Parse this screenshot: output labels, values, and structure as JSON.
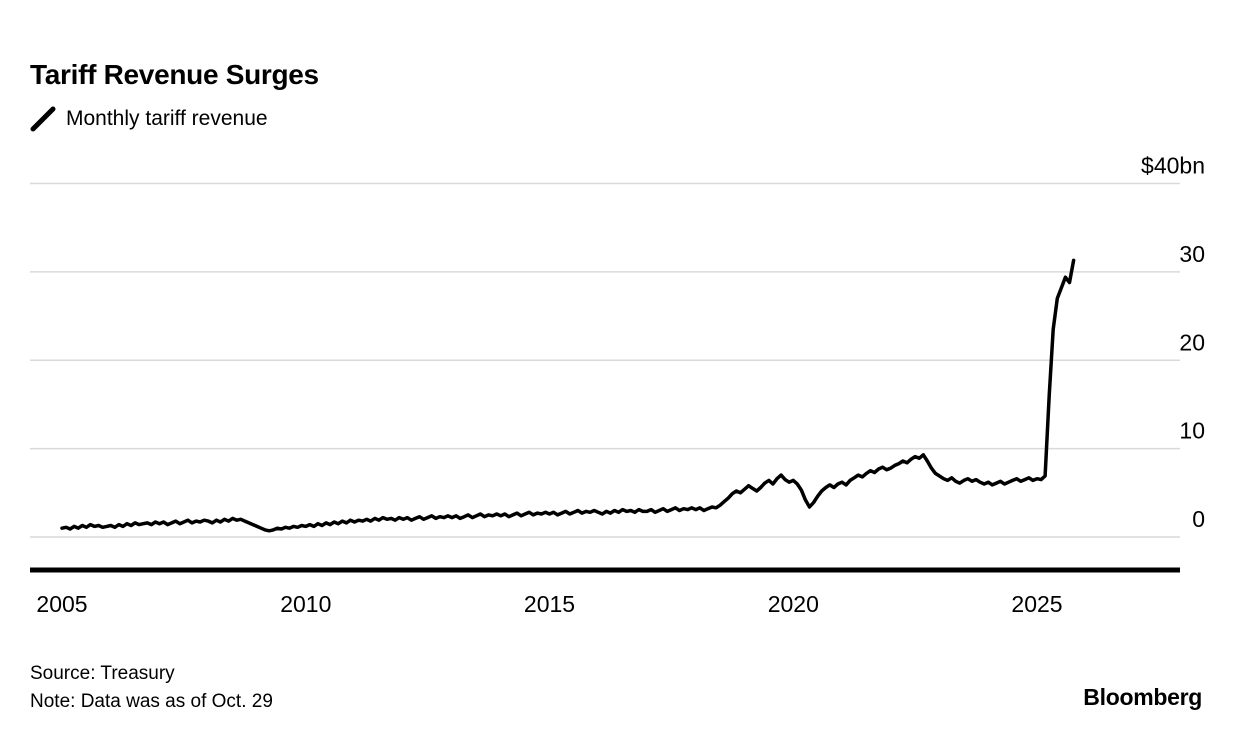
{
  "legend": {
    "label": "Monthly tariff revenue",
    "swatch_color": "#000000"
  },
  "chart_data": {
    "type": "line",
    "title": "Tariff Revenue Surges",
    "xlabel": "",
    "ylabel": "Monthly tariff revenue ($bn)",
    "y_range": [
      0,
      40
    ],
    "grid": "horizontal",
    "legend_position": "top-left",
    "axis_side": "right",
    "x_ticks": [
      "2005",
      "2010",
      "2015",
      "2020",
      "2025"
    ],
    "y_ticks": [
      {
        "value": 40,
        "label": "$40bn"
      },
      {
        "value": 30,
        "label": "30"
      },
      {
        "value": 20,
        "label": "20"
      },
      {
        "value": 10,
        "label": "10"
      },
      {
        "value": 0,
        "label": "0"
      }
    ],
    "series": [
      {
        "name": "Monthly tariff revenue",
        "color": "#000000",
        "start_year": 2005,
        "step_months": 1,
        "values": [
          1.0,
          1.1,
          0.9,
          1.2,
          1.0,
          1.3,
          1.1,
          1.4,
          1.2,
          1.3,
          1.1,
          1.2,
          1.3,
          1.1,
          1.4,
          1.2,
          1.5,
          1.3,
          1.6,
          1.4,
          1.5,
          1.6,
          1.4,
          1.7,
          1.5,
          1.7,
          1.4,
          1.6,
          1.8,
          1.5,
          1.7,
          1.9,
          1.6,
          1.8,
          1.7,
          1.9,
          1.8,
          1.6,
          1.9,
          1.7,
          2.0,
          1.8,
          2.1,
          1.9,
          2.0,
          1.8,
          1.6,
          1.4,
          1.2,
          1.0,
          0.8,
          0.7,
          0.8,
          1.0,
          0.9,
          1.1,
          1.0,
          1.2,
          1.1,
          1.3,
          1.2,
          1.4,
          1.2,
          1.5,
          1.3,
          1.6,
          1.4,
          1.7,
          1.5,
          1.8,
          1.6,
          1.9,
          1.7,
          1.9,
          1.8,
          2.0,
          1.8,
          2.1,
          1.9,
          2.2,
          2.0,
          2.1,
          1.9,
          2.2,
          2.0,
          2.2,
          1.9,
          2.1,
          2.3,
          2.0,
          2.2,
          2.4,
          2.1,
          2.3,
          2.2,
          2.4,
          2.2,
          2.4,
          2.1,
          2.3,
          2.5,
          2.2,
          2.4,
          2.6,
          2.3,
          2.5,
          2.4,
          2.6,
          2.4,
          2.6,
          2.3,
          2.5,
          2.7,
          2.4,
          2.6,
          2.8,
          2.5,
          2.7,
          2.6,
          2.8,
          2.6,
          2.8,
          2.5,
          2.7,
          2.9,
          2.6,
          2.8,
          3.0,
          2.7,
          2.9,
          2.8,
          3.0,
          2.8,
          2.6,
          2.9,
          2.7,
          3.0,
          2.8,
          3.1,
          2.9,
          3.0,
          2.8,
          3.1,
          2.9,
          2.9,
          3.1,
          2.8,
          3.0,
          3.2,
          2.9,
          3.1,
          3.3,
          3.0,
          3.2,
          3.1,
          3.3,
          3.1,
          3.3,
          3.0,
          3.2,
          3.4,
          3.3,
          3.6,
          4.0,
          4.4,
          4.9,
          5.2,
          5.0,
          5.4,
          5.8,
          5.5,
          5.2,
          5.6,
          6.1,
          6.4,
          6.0,
          6.6,
          7.0,
          6.5,
          6.2,
          6.4,
          6.0,
          5.3,
          4.2,
          3.4,
          3.9,
          4.6,
          5.2,
          5.6,
          5.9,
          5.6,
          6.0,
          6.2,
          5.9,
          6.4,
          6.7,
          7.0,
          6.8,
          7.2,
          7.5,
          7.3,
          7.7,
          7.9,
          7.6,
          7.8,
          8.1,
          8.3,
          8.6,
          8.4,
          8.8,
          9.1,
          8.9,
          9.3,
          8.6,
          7.8,
          7.2,
          6.9,
          6.6,
          6.4,
          6.7,
          6.3,
          6.1,
          6.4,
          6.6,
          6.3,
          6.5,
          6.2,
          6.0,
          6.2,
          5.9,
          6.1,
          6.3,
          6.0,
          6.2,
          6.4,
          6.6,
          6.3,
          6.5,
          6.7,
          6.4,
          6.6,
          6.5,
          6.9,
          16.0,
          23.5,
          27.0,
          28.2,
          29.4,
          28.8,
          31.3
        ]
      }
    ]
  },
  "footer": {
    "source": "Source: Treasury",
    "note": "Note: Data was as of Oct. 29",
    "brand": "Bloomberg"
  }
}
